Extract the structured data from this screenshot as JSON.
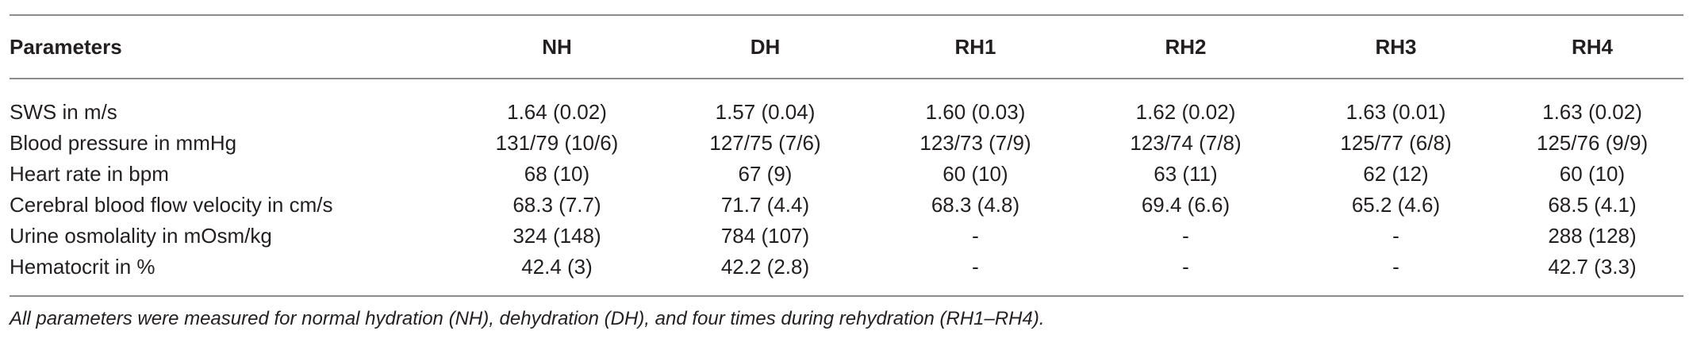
{
  "table": {
    "headers": [
      "Parameters",
      "NH",
      "DH",
      "RH1",
      "RH2",
      "RH3",
      "RH4"
    ],
    "rows": [
      [
        "SWS in m/s",
        "1.64 (0.02)",
        "1.57 (0.04)",
        "1.60 (0.03)",
        "1.62 (0.02)",
        "1.63 (0.01)",
        "1.63 (0.02)"
      ],
      [
        "Blood pressure in mmHg",
        "131/79 (10/6)",
        "127/75 (7/6)",
        "123/73 (7/9)",
        "123/74 (7/8)",
        "125/77 (6/8)",
        "125/76 (9/9)"
      ],
      [
        "Heart rate in bpm",
        "68 (10)",
        "67 (9)",
        "60 (10)",
        "63 (11)",
        "62 (12)",
        "60 (10)"
      ],
      [
        "Cerebral blood flow velocity in cm/s",
        "68.3 (7.7)",
        "71.7 (4.4)",
        "68.3 (4.8)",
        "69.4 (6.6)",
        "65.2 (4.6)",
        "68.5 (4.1)"
      ],
      [
        "Urine osmolality in mOsm/kg",
        "324 (148)",
        "784 (107)",
        "-",
        "-",
        "-",
        "288 (128)"
      ],
      [
        "Hematocrit in %",
        "42.4 (3)",
        "42.2 (2.8)",
        "-",
        "-",
        "-",
        "42.7 (3.3)"
      ]
    ]
  },
  "footnote": "All parameters were measured for normal hydration (NH), dehydration (DH), and four times during rehydration (RH1–RH4)."
}
